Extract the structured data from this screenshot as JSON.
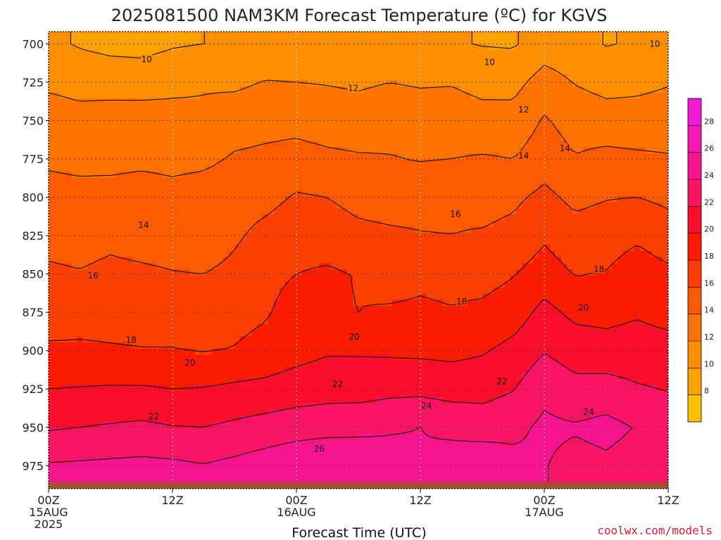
{
  "chart_data": {
    "type": "heatmap",
    "title": "2025081500 NAM3KM Forecast Temperature (ºC) for KGVS",
    "xlabel": "Forecast Time (UTC)",
    "ylabel": "",
    "y_scale": "pressure (inverted)",
    "ylim": [
      990,
      692
    ],
    "xlim": [
      "2025-08-15 00Z",
      "2025-08-17 12Z"
    ],
    "yticks": [
      "700",
      "725",
      "750",
      "775",
      "800",
      "825",
      "850",
      "875",
      "900",
      "925",
      "950",
      "975"
    ],
    "xticks": [
      {
        "l1": "00Z",
        "l2": "15AUG",
        "l3": "2025"
      },
      {
        "l1": "12Z",
        "l2": "",
        "l3": ""
      },
      {
        "l1": "00Z",
        "l2": "16AUG",
        "l3": ""
      },
      {
        "l1": "12Z",
        "l2": "",
        "l3": ""
      },
      {
        "l1": "00Z",
        "l2": "17AUG",
        "l3": ""
      },
      {
        "l1": "12Z",
        "l2": "",
        "l3": ""
      }
    ],
    "grid": true,
    "legend": "colorbar-right",
    "colorbar_ticks": [
      "8",
      "10",
      "12",
      "14",
      "16",
      "18",
      "20",
      "22",
      "24",
      "26",
      "28"
    ],
    "colorbar_colors": [
      "#ffc000",
      "#ffa200",
      "#fd8e00",
      "#fe7300",
      "#fe5a00",
      "#fd4000",
      "#fe1c00",
      "#fc0d2b",
      "#fa1564",
      "#f8148e",
      "#f518b4",
      "#f31ad6"
    ],
    "colorbar_min": 6,
    "colorbar_max": 30,
    "x_hours": [
      0,
      3,
      6,
      9,
      12,
      15,
      18,
      21,
      24,
      27,
      30,
      33,
      36,
      39,
      42,
      45,
      48,
      51,
      54,
      57,
      60
    ],
    "levels": [
      700,
      725,
      750,
      775,
      800,
      825,
      850,
      875,
      900,
      925,
      950,
      975
    ],
    "temperature_c": [
      [
        10.5,
        9.8,
        9.4,
        9.3,
        9.8,
        10.0,
        10.1,
        10.3,
        10.6,
        10.5,
        10.3,
        10.1,
        10.4,
        10.2,
        9.9,
        9.8,
        11.0,
        10.8,
        9.9,
        10.2,
        10.9
      ],
      [
        11.7,
        11.5,
        11.3,
        11.2,
        11.5,
        11.8,
        11.6,
        12.1,
        12.0,
        11.9,
        11.7,
        12.0,
        11.8,
        11.9,
        11.5,
        11.4,
        12.8,
        11.9,
        11.4,
        11.6,
        11.9
      ],
      [
        12.8,
        12.5,
        12.8,
        12.9,
        12.7,
        12.4,
        13.2,
        13.4,
        13.4,
        13.1,
        13.0,
        13.3,
        13.1,
        12.9,
        12.6,
        12.7,
        14.2,
        13.2,
        12.8,
        12.7,
        12.8
      ],
      [
        13.7,
        13.5,
        13.4,
        13.6,
        13.4,
        13.6,
        14.2,
        14.4,
        14.7,
        14.4,
        14.2,
        14.1,
        13.9,
        14.0,
        14.2,
        14.0,
        15.1,
        14.1,
        14.6,
        14.4,
        14.2
      ],
      [
        14.7,
        14.6,
        14.8,
        14.9,
        14.7,
        14.9,
        15.1,
        15.4,
        16.2,
        16.0,
        15.4,
        15.2,
        15.3,
        15.6,
        15.2,
        15.6,
        16.5,
        15.5,
        15.9,
        16.0,
        15.6
      ],
      [
        15.4,
        15.3,
        15.6,
        15.3,
        15.1,
        14.8,
        15.7,
        16.6,
        17.2,
        17.0,
        16.5,
        16.3,
        16.1,
        16.0,
        16.2,
        16.6,
        17.7,
        16.8,
        17.1,
        17.7,
        16.9
      ],
      [
        16.3,
        16.1,
        16.4,
        16.3,
        16.1,
        16.0,
        16.5,
        17.5,
        18.0,
        18.3,
        17.9,
        17.3,
        17.6,
        17.5,
        17.3,
        17.9,
        18.9,
        17.9,
        18.1,
        19.0,
        18.4
      ],
      [
        17.1,
        17.3,
        17.2,
        17.1,
        17.0,
        16.9,
        17.4,
        17.8,
        18.8,
        18.2,
        18.0,
        18.2,
        18.3,
        18.1,
        18.4,
        19.0,
        20.6,
        19.5,
        19.4,
        19.8,
        19.3
      ],
      [
        18.3,
        18.3,
        18.2,
        18.1,
        18.1,
        17.9,
        18.1,
        18.6,
        19.3,
        19.8,
        19.8,
        19.7,
        19.6,
        19.5,
        19.8,
        20.6,
        21.9,
        21.1,
        20.8,
        20.9,
        20.8
      ],
      [
        20.0,
        20.1,
        20.2,
        20.2,
        20.0,
        20.1,
        20.4,
        20.6,
        21.0,
        21.2,
        21.1,
        21.4,
        21.5,
        21.2,
        21.3,
        21.9,
        23.5,
        22.6,
        22.8,
        22.2,
        21.9
      ],
      [
        21.8,
        22.0,
        22.2,
        22.4,
        22.1,
        22.0,
        22.4,
        22.8,
        23.1,
        23.3,
        23.6,
        23.9,
        24.0,
        23.6,
        23.1,
        23.5,
        24.4,
        24.2,
        24.6,
        23.9,
        23.4
      ],
      [
        24.2,
        24.3,
        24.4,
        24.5,
        24.4,
        24.1,
        24.5,
        25.0,
        25.6,
        25.9,
        25.2,
        24.4,
        24.2,
        24.8,
        25.5,
        24.6,
        24.1,
        23.3,
        23.6,
        23.1,
        22.7
      ]
    ],
    "contour_levels": [
      10,
      12,
      14,
      16,
      18,
      20,
      22,
      24,
      26
    ],
    "contour_labels": [
      {
        "text": "10",
        "hour": 9.5,
        "level": 710
      },
      {
        "text": "10",
        "hour": 42.7,
        "level": 712
      },
      {
        "text": "10",
        "hour": 58.7,
        "level": 700
      },
      {
        "text": "12",
        "hour": 29.5,
        "level": 729
      },
      {
        "text": "12",
        "hour": 46.0,
        "level": 743
      },
      {
        "text": "14",
        "hour": 46.0,
        "level": 773
      },
      {
        "text": "14",
        "hour": 50.0,
        "level": 768
      },
      {
        "text": "14",
        "hour": 9.2,
        "level": 818
      },
      {
        "text": "16",
        "hour": 4.3,
        "level": 851
      },
      {
        "text": "16",
        "hour": 39.4,
        "level": 811
      },
      {
        "text": "18",
        "hour": 40.0,
        "level": 868
      },
      {
        "text": "18",
        "hour": 53.3,
        "level": 847
      },
      {
        "text": "18",
        "hour": 8.0,
        "level": 893
      },
      {
        "text": "20",
        "hour": 29.6,
        "level": 891
      },
      {
        "text": "20",
        "hour": 51.8,
        "level": 872
      },
      {
        "text": "20",
        "hour": 13.7,
        "level": 908
      },
      {
        "text": "22",
        "hour": 28.0,
        "level": 922
      },
      {
        "text": "22",
        "hour": 43.9,
        "level": 920
      },
      {
        "text": "22",
        "hour": 10.2,
        "level": 943
      },
      {
        "text": "24",
        "hour": 36.6,
        "level": 936
      },
      {
        "text": "24",
        "hour": 52.3,
        "level": 940
      },
      {
        "text": "26",
        "hour": 26.2,
        "level": 964
      }
    ],
    "ground_color": "#a0522d"
  },
  "credit": "coolwx.com/models"
}
